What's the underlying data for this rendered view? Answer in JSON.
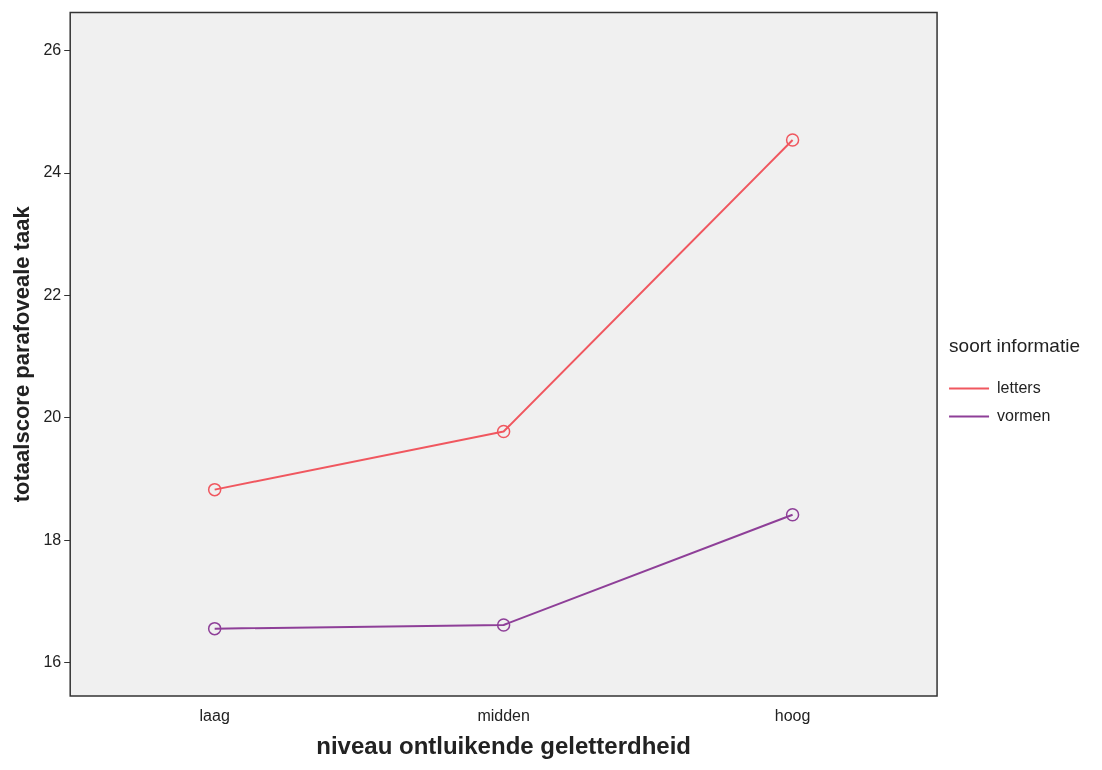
{
  "chart_data": {
    "type": "line",
    "xlabel": "niveau ontluikende geletterdheid",
    "ylabel": "totaalscore parafoveale taak",
    "legend_title": "soort informatie",
    "categories": [
      "laag",
      "midden",
      "hoog"
    ],
    "series": [
      {
        "name": "letters",
        "color": "#f0575f",
        "values": [
          18.83,
          19.78,
          24.54
        ]
      },
      {
        "name": "vormen",
        "color": "#8e3f98",
        "values": [
          16.56,
          16.62,
          18.42
        ]
      }
    ],
    "ylim": [
      15.46,
      26.62
    ],
    "yticks": [
      16,
      18,
      20,
      22,
      24,
      26
    ],
    "grid": false,
    "legend": "right",
    "marker": "circle",
    "line_style": "solid"
  }
}
